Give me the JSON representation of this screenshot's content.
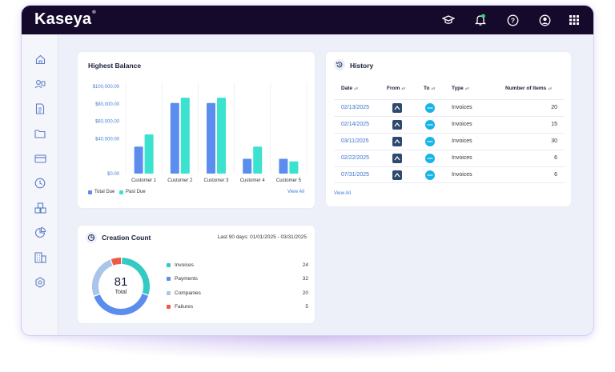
{
  "app": {
    "logo": "Kaseya",
    "logo_mark": "®"
  },
  "topbar_icons": [
    "graduation-cap-icon",
    "bell-icon",
    "help-icon",
    "user-icon",
    "apps-grid-icon"
  ],
  "sidebar_icons": [
    "home-icon",
    "contacts-icon",
    "document-icon",
    "folder-icon",
    "card-icon",
    "clock-icon",
    "boxes-icon",
    "chart-pie-icon",
    "building-icon",
    "settings-icon"
  ],
  "colors": {
    "total_due": "#5b8def",
    "past_due": "#3be2cf",
    "invoices": "#35c9c3",
    "payments": "#5b8def",
    "companies": "#a9c5ea",
    "failures": "#ef5a47",
    "topbar": "#150a2c"
  },
  "highest_balance": {
    "title": "Highest Balance",
    "view_all": "View All",
    "legend": [
      "Total Due",
      "Past Due"
    ],
    "chart_data": {
      "type": "bar",
      "categories": [
        "Customer 1",
        "Customer 2",
        "Customer 3",
        "Customer 4",
        "Customer 5"
      ],
      "series": [
        {
          "name": "Total Due",
          "values": [
            31000,
            81000,
            81000,
            17000,
            17000
          ]
        },
        {
          "name": "Past Due",
          "values": [
            45000,
            87000,
            87000,
            31000,
            14000
          ]
        }
      ],
      "yticks": [
        "$100,000.00",
        "$80,000.00",
        "$60,000.00",
        "$40,000.00",
        "$0.00"
      ],
      "ylim": [
        0,
        100000
      ]
    }
  },
  "history": {
    "title": "History",
    "view_all": "View All",
    "columns": [
      "Date",
      "From",
      "To",
      "Type",
      "Number of Items"
    ],
    "rows": [
      {
        "date": "02/13/2025",
        "type": "Invoices",
        "items": "20"
      },
      {
        "date": "02/14/2025",
        "type": "Invoices",
        "items": "15"
      },
      {
        "date": "03/11/2025",
        "type": "Invoices",
        "items": "30"
      },
      {
        "date": "02/22/2025",
        "type": "Invoices",
        "items": "6"
      },
      {
        "date": "07/31/2025",
        "type": "Invoices",
        "items": "6"
      }
    ]
  },
  "creation_count": {
    "title": "Creation Count",
    "range": "Last 90 days: 01/01/2025 - 03/31/2025",
    "total": "81",
    "total_label": "Total",
    "chart_data": {
      "type": "pie",
      "items": [
        {
          "label": "Invoices",
          "value": 24
        },
        {
          "label": "Payments",
          "value": 32
        },
        {
          "label": "Companies",
          "value": 20
        },
        {
          "label": "Failures",
          "value": 5
        }
      ]
    }
  }
}
